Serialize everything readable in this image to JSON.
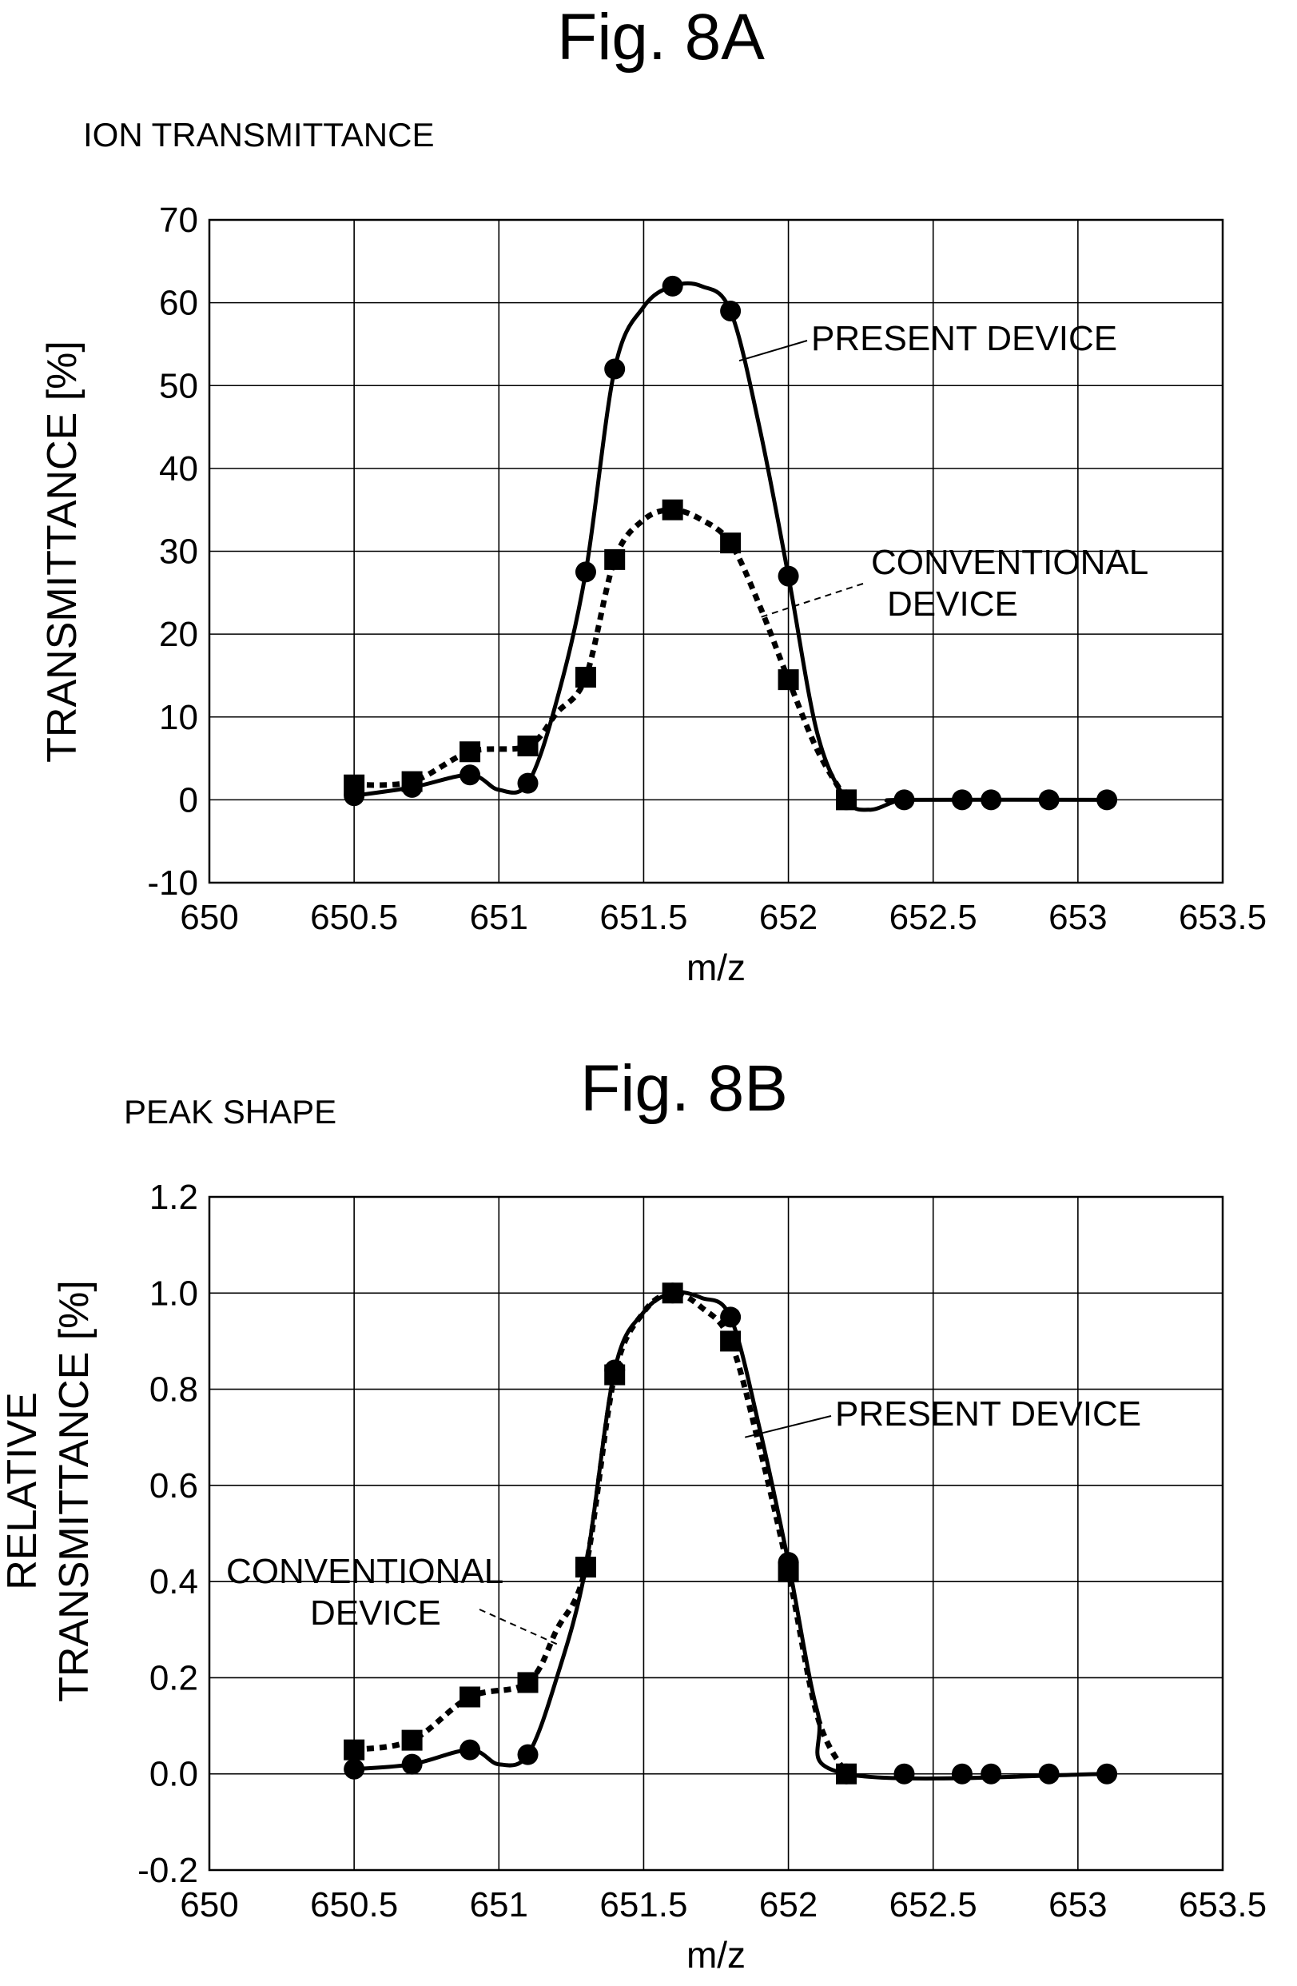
{
  "chart_data": [
    {
      "type": "line",
      "title": "Fig. 8A",
      "subtitle": "ION TRANSMITTANCE",
      "xlabel": "m/z",
      "ylabel": "TRANSMITTANCE [%]",
      "xlim": [
        650,
        653.5
      ],
      "ylim": [
        -10,
        70
      ],
      "x_ticks": [
        "650",
        "650.5",
        "651",
        "651.5",
        "652",
        "652.5",
        "653",
        "653.5"
      ],
      "y_ticks": [
        "-10",
        "0",
        "10",
        "20",
        "30",
        "40",
        "50",
        "60",
        "70"
      ],
      "grid": true,
      "series": [
        {
          "name": "PRESENT DEVICE",
          "style": "solid",
          "marker": "circle",
          "color": "#000000",
          "points": [
            [
              650.5,
              0.5
            ],
            [
              650.7,
              1.5
            ],
            [
              650.9,
              3.0
            ],
            [
              651.1,
              2.0
            ],
            [
              651.3,
              27.5
            ],
            [
              651.4,
              52.0
            ],
            [
              651.6,
              62.0
            ],
            [
              651.8,
              59.0
            ],
            [
              652.0,
              27.0
            ],
            [
              652.2,
              0.0
            ],
            [
              652.4,
              0.0
            ],
            [
              652.6,
              0.0
            ],
            [
              652.7,
              0.0
            ],
            [
              652.9,
              0.0
            ],
            [
              653.1,
              0.0
            ]
          ],
          "curve": [
            [
              650.5,
              0.5
            ],
            [
              650.7,
              1.5
            ],
            [
              650.9,
              3.0
            ],
            [
              651.0,
              1.2
            ],
            [
              651.1,
              2.0
            ],
            [
              651.2,
              12.0
            ],
            [
              651.3,
              27.5
            ],
            [
              651.4,
              52.0
            ],
            [
              651.5,
              59.5
            ],
            [
              651.6,
              62.0
            ],
            [
              651.7,
              62.0
            ],
            [
              651.8,
              59.0
            ],
            [
              651.9,
              45.0
            ],
            [
              652.0,
              27.0
            ],
            [
              652.1,
              8.0
            ],
            [
              652.2,
              0.0
            ],
            [
              652.28,
              -1.2
            ],
            [
              652.36,
              -0.3
            ],
            [
              652.4,
              0.0
            ],
            [
              653.1,
              0.0
            ]
          ]
        },
        {
          "name": "CONVENTIONAL DEVICE",
          "style": "dashed",
          "marker": "square",
          "color": "#000000",
          "points": [
            [
              650.5,
              1.8
            ],
            [
              650.7,
              2.2
            ],
            [
              650.9,
              5.8
            ],
            [
              651.1,
              6.5
            ],
            [
              651.3,
              14.8
            ],
            [
              651.4,
              29.0
            ],
            [
              651.6,
              35.0
            ],
            [
              651.8,
              31.0
            ],
            [
              652.0,
              14.5
            ],
            [
              652.2,
              0.0
            ]
          ],
          "curve": [
            [
              650.5,
              1.8
            ],
            [
              650.7,
              2.2
            ],
            [
              650.9,
              5.8
            ],
            [
              651.1,
              6.5
            ],
            [
              651.2,
              10.5
            ],
            [
              651.3,
              14.8
            ],
            [
              651.4,
              29.0
            ],
            [
              651.5,
              33.8
            ],
            [
              651.6,
              35.0
            ],
            [
              651.7,
              33.8
            ],
            [
              651.8,
              31.0
            ],
            [
              651.9,
              23.5
            ],
            [
              652.0,
              14.5
            ],
            [
              652.1,
              6.0
            ],
            [
              652.2,
              0.0
            ]
          ]
        }
      ],
      "annotations": [
        {
          "text": "PRESENT DEVICE",
          "target": [
            651.83,
            53.0
          ]
        },
        {
          "text": "CONVENTIONAL DEVICE",
          "lines": [
            "CONVENTIONAL",
            "DEVICE"
          ],
          "target": [
            651.9,
            22.0
          ]
        }
      ]
    },
    {
      "type": "line",
      "title": "Fig. 8B",
      "subtitle": "PEAK SHAPE",
      "xlabel": "m/z",
      "ylabel": "RELATIVE TRANSMITTANCE [%]",
      "ylabel_lines": [
        "RELATIVE",
        "TRANSMITTANCE [%]"
      ],
      "xlim": [
        650,
        653.5
      ],
      "ylim": [
        -0.2,
        1.2
      ],
      "x_ticks": [
        "650",
        "650.5",
        "651",
        "651.5",
        "652",
        "652.5",
        "653",
        "653.5"
      ],
      "y_ticks": [
        "-0.2",
        "0.0",
        "0.2",
        "0.4",
        "0.6",
        "0.8",
        "1.0",
        "1.2"
      ],
      "grid": true,
      "series": [
        {
          "name": "PRESENT DEVICE",
          "style": "solid",
          "marker": "circle",
          "color": "#000000",
          "points": [
            [
              650.5,
              0.01
            ],
            [
              650.7,
              0.02
            ],
            [
              650.9,
              0.05
            ],
            [
              651.1,
              0.04
            ],
            [
              651.3,
              0.43
            ],
            [
              651.4,
              0.84
            ],
            [
              651.6,
              1.0
            ],
            [
              651.8,
              0.95
            ],
            [
              652.0,
              0.44
            ],
            [
              652.2,
              0.0
            ],
            [
              652.4,
              0.0
            ],
            [
              652.6,
              0.0
            ],
            [
              652.7,
              0.0
            ],
            [
              652.9,
              0.0
            ],
            [
              653.1,
              0.0
            ]
          ],
          "curve": [
            [
              650.5,
              0.01
            ],
            [
              650.7,
              0.02
            ],
            [
              650.9,
              0.05
            ],
            [
              651.0,
              0.02
            ],
            [
              651.1,
              0.04
            ],
            [
              651.2,
              0.2
            ],
            [
              651.3,
              0.43
            ],
            [
              651.4,
              0.84
            ],
            [
              651.5,
              0.96
            ],
            [
              651.6,
              1.0
            ],
            [
              651.7,
              0.99
            ],
            [
              651.8,
              0.95
            ],
            [
              651.9,
              0.72
            ],
            [
              652.0,
              0.44
            ],
            [
              652.1,
              0.13
            ],
            [
              652.2,
              0.0
            ],
            [
              653.1,
              0.0
            ]
          ]
        },
        {
          "name": "CONVENTIONAL DEVICE",
          "style": "dashed",
          "marker": "square",
          "color": "#000000",
          "points": [
            [
              650.5,
              0.05
            ],
            [
              650.7,
              0.07
            ],
            [
              650.9,
              0.16
            ],
            [
              651.1,
              0.19
            ],
            [
              651.3,
              0.43
            ],
            [
              651.4,
              0.83
            ],
            [
              651.6,
              1.0
            ],
            [
              651.8,
              0.9
            ],
            [
              652.0,
              0.42
            ],
            [
              652.2,
              0.0
            ]
          ],
          "curve": [
            [
              650.5,
              0.05
            ],
            [
              650.7,
              0.07
            ],
            [
              650.9,
              0.16
            ],
            [
              651.1,
              0.19
            ],
            [
              651.2,
              0.3
            ],
            [
              651.3,
              0.43
            ],
            [
              651.4,
              0.83
            ],
            [
              651.5,
              0.96
            ],
            [
              651.6,
              1.0
            ],
            [
              651.7,
              0.97
            ],
            [
              651.8,
              0.9
            ],
            [
              651.9,
              0.68
            ],
            [
              652.0,
              0.42
            ],
            [
              652.1,
              0.12
            ],
            [
              652.2,
              0.0
            ]
          ]
        }
      ],
      "annotations": [
        {
          "text": "PRESENT DEVICE",
          "target": [
            651.85,
            0.7
          ]
        },
        {
          "text": "CONVENTIONAL DEVICE",
          "lines": [
            "CONVENTIONAL",
            "DEVICE"
          ],
          "target": [
            651.2,
            0.27
          ]
        }
      ]
    }
  ]
}
